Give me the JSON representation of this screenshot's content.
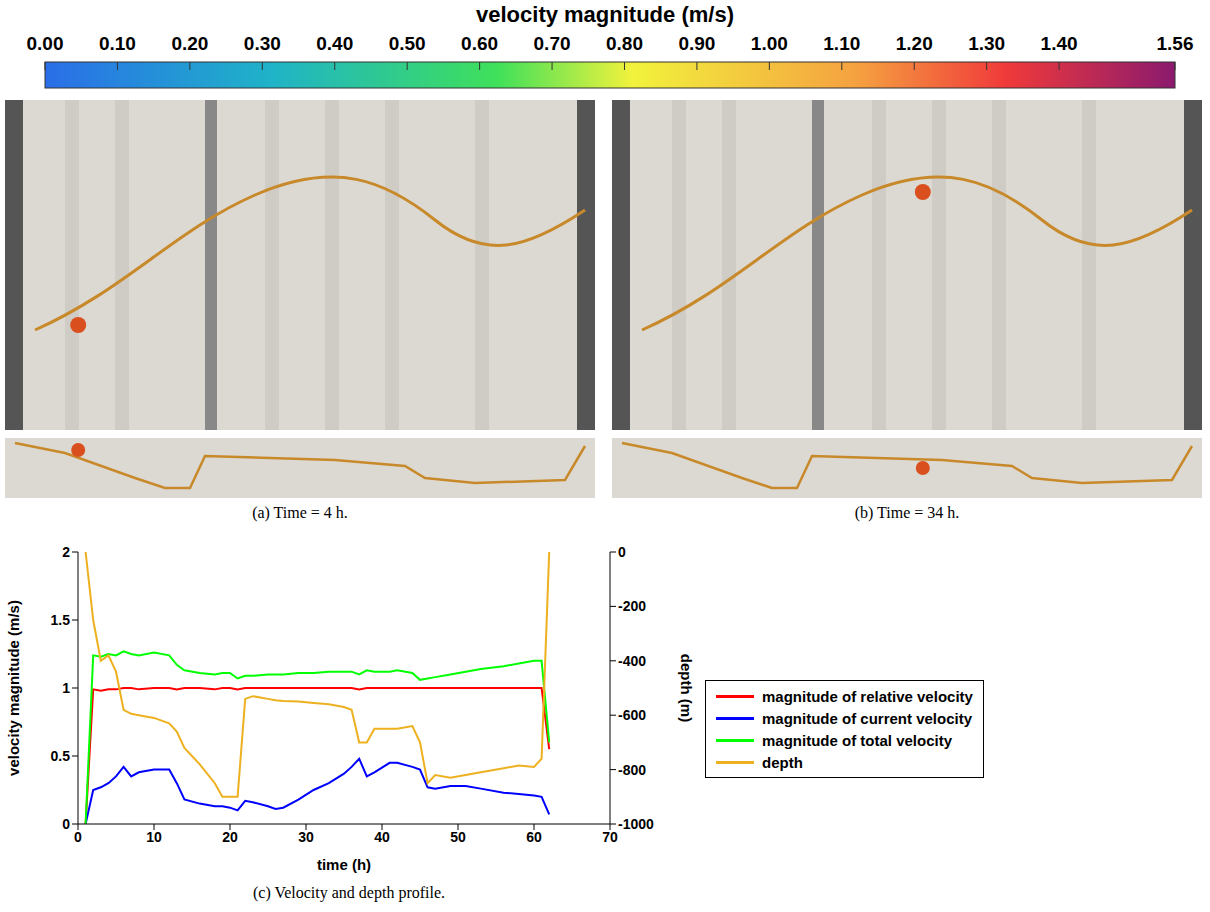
{
  "colorbar": {
    "title": "velocity magnitude (m/s)",
    "range": [
      0,
      1.56
    ],
    "ticks": [
      {
        "value": 0,
        "label": "0.00"
      },
      {
        "value": 0.1,
        "label": "0.10"
      },
      {
        "value": 0.2,
        "label": "0.20"
      },
      {
        "value": 0.3,
        "label": "0.30"
      },
      {
        "value": 0.4,
        "label": "0.40"
      },
      {
        "value": 0.5,
        "label": "0.50"
      },
      {
        "value": 0.6,
        "label": "0.60"
      },
      {
        "value": 0.7,
        "label": "0.70"
      },
      {
        "value": 0.8,
        "label": "0.80"
      },
      {
        "value": 0.9,
        "label": "0.90"
      },
      {
        "value": 1.0,
        "label": "1.00"
      },
      {
        "value": 1.1,
        "label": "1.10"
      },
      {
        "value": 1.2,
        "label": "1.20"
      },
      {
        "value": 1.3,
        "label": "1.30"
      },
      {
        "value": 1.4,
        "label": "1.40"
      },
      {
        "value": 1.56,
        "label": "1.56"
      }
    ]
  },
  "panels": [
    {
      "caption": "(a) Time = 4 h."
    },
    {
      "caption": "(b) Time = 34 h."
    }
  ],
  "chart_data": {
    "type": "line",
    "title": "(c) Velocity and depth profile.",
    "x_label": "time (h)",
    "y_label": "velocity magnitude (m/s)",
    "y2_label": "depth (m)",
    "x": [
      1,
      2,
      3,
      4,
      5,
      6,
      7,
      8,
      10,
      12,
      13,
      14,
      16,
      18,
      19,
      20,
      21,
      22,
      23,
      25,
      26,
      27,
      29,
      31,
      33,
      35,
      36,
      37,
      38,
      39,
      41,
      42,
      44,
      45,
      46,
      47,
      49,
      51,
      53,
      56,
      58,
      60,
      61,
      62
    ],
    "series": [
      {
        "name": "magnitude of relative velocity",
        "color": "#ff0000",
        "values": [
          0,
          0.99,
          0.98,
          0.99,
          0.99,
          1.0,
          1.0,
          0.99,
          1.0,
          1.0,
          0.99,
          1.0,
          1.0,
          0.99,
          1.0,
          1.0,
          0.99,
          1.0,
          1.0,
          1.0,
          1.0,
          1.0,
          1.0,
          1.0,
          1.0,
          1.0,
          1.0,
          0.99,
          1.0,
          1.0,
          1.0,
          1.0,
          1.0,
          1.0,
          1.0,
          1.0,
          1.0,
          1.0,
          1.0,
          1.0,
          1.0,
          1.0,
          1.0,
          0.55
        ]
      },
      {
        "name": "magnitude of current velocity",
        "color": "#0000ff",
        "values": [
          0,
          0.25,
          0.27,
          0.3,
          0.35,
          0.42,
          0.35,
          0.38,
          0.4,
          0.4,
          0.3,
          0.18,
          0.15,
          0.13,
          0.13,
          0.12,
          0.1,
          0.17,
          0.16,
          0.13,
          0.11,
          0.12,
          0.18,
          0.25,
          0.3,
          0.37,
          0.42,
          0.48,
          0.35,
          0.38,
          0.45,
          0.45,
          0.42,
          0.4,
          0.27,
          0.26,
          0.28,
          0.28,
          0.26,
          0.23,
          0.22,
          0.21,
          0.2,
          0.07
        ]
      },
      {
        "name": "magnitude of total velocity",
        "color": "#00ff00",
        "values": [
          0,
          1.24,
          1.23,
          1.25,
          1.24,
          1.27,
          1.25,
          1.24,
          1.26,
          1.24,
          1.17,
          1.13,
          1.11,
          1.1,
          1.11,
          1.11,
          1.07,
          1.09,
          1.09,
          1.1,
          1.1,
          1.1,
          1.11,
          1.11,
          1.12,
          1.12,
          1.12,
          1.1,
          1.13,
          1.12,
          1.12,
          1.13,
          1.11,
          1.06,
          1.07,
          1.08,
          1.1,
          1.12,
          1.14,
          1.16,
          1.18,
          1.2,
          1.2,
          0.6
        ]
      },
      {
        "name": "depth",
        "color": "#edb120",
        "axis": "y2",
        "values": [
          0,
          -250,
          -400,
          -380,
          -440,
          -580,
          -595,
          -600,
          -610,
          -630,
          -660,
          -720,
          -780,
          -850,
          -900,
          -900,
          -900,
          -540,
          -530,
          -540,
          -545,
          -548,
          -550,
          -555,
          -560,
          -570,
          -580,
          -700,
          -700,
          -650,
          -650,
          -650,
          -640,
          -700,
          -850,
          -820,
          -830,
          -820,
          -810,
          -795,
          -785,
          -790,
          -760,
          0
        ]
      }
    ],
    "xlim": [
      0,
      70
    ],
    "xticks": [
      0,
      10,
      20,
      30,
      40,
      50,
      60,
      70
    ],
    "ylim": [
      0,
      2
    ],
    "yticks": [
      0,
      0.5,
      1,
      1.5,
      2
    ],
    "y2lim": [
      -1000,
      0
    ],
    "y2ticks": [
      -1000,
      -800,
      -600,
      -400,
      -200,
      0
    ],
    "grid": false,
    "legend": "right"
  }
}
